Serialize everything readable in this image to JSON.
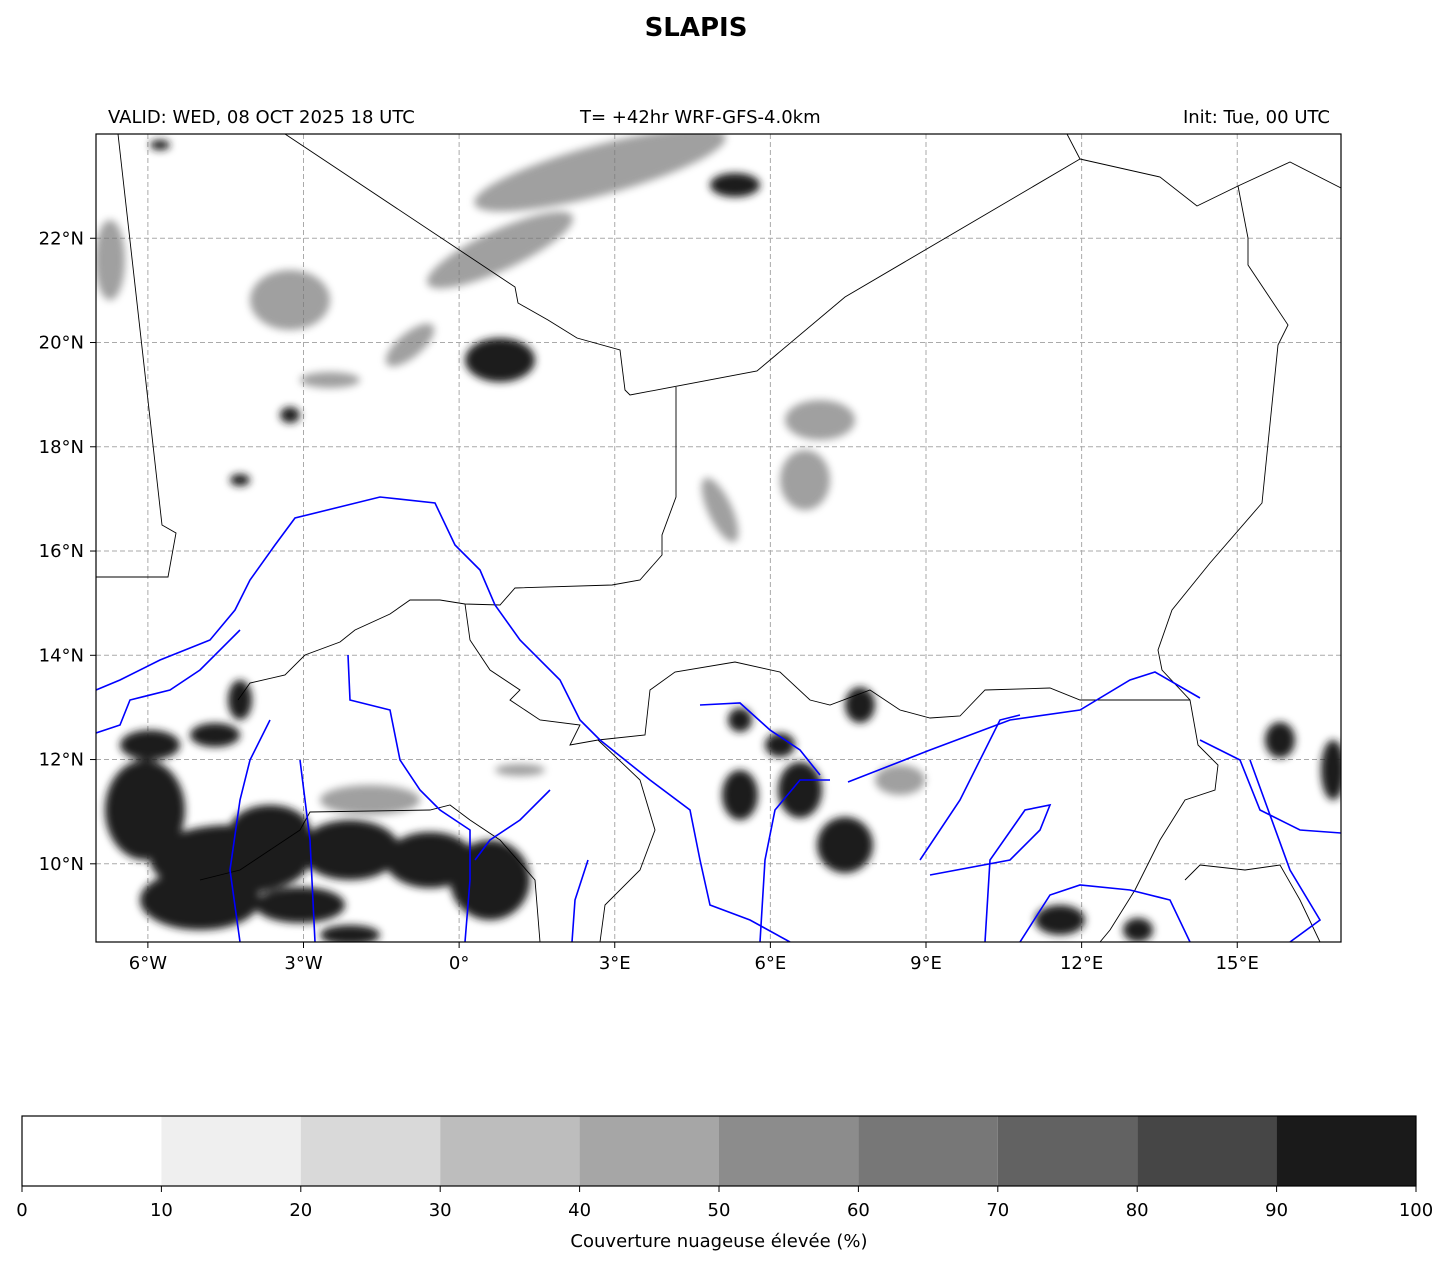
{
  "chart_data": {
    "type": "map",
    "title": "SLAPIS",
    "subtitle_left": "VALID: WED, 08 OCT 2025 18 UTC",
    "subtitle_center": "T= +42hr WRF-GFS-4.0km",
    "subtitle_right": "Init: Tue, 00 UTC",
    "xlim": [
      -7,
      17
    ],
    "ylim": [
      8.5,
      24
    ],
    "grid": true,
    "xticks": [
      {
        "value": -6,
        "label": "6°W"
      },
      {
        "value": -3,
        "label": "3°W"
      },
      {
        "value": 0,
        "label": "0°"
      },
      {
        "value": 3,
        "label": "3°E"
      },
      {
        "value": 6,
        "label": "6°E"
      },
      {
        "value": 9,
        "label": "9°E"
      },
      {
        "value": 12,
        "label": "12°E"
      },
      {
        "value": 15,
        "label": "15°E"
      }
    ],
    "yticks": [
      {
        "value": 10,
        "label": "10°N"
      },
      {
        "value": 12,
        "label": "12°N"
      },
      {
        "value": 14,
        "label": "14°N"
      },
      {
        "value": 16,
        "label": "16°N"
      },
      {
        "value": 18,
        "label": "18°N"
      },
      {
        "value": 20,
        "label": "20°N"
      },
      {
        "value": 22,
        "label": "22°N"
      }
    ],
    "colorbar": {
      "label": "Couverture nuageuse élevée (%)",
      "levels": [
        0,
        10,
        20,
        30,
        40,
        50,
        60,
        70,
        80,
        90,
        100
      ],
      "colors": [
        "#ffffff",
        "#efefef",
        "#d9d9d9",
        "#bdbdbd",
        "#a6a6a6",
        "#8c8c8c",
        "#777777",
        "#626262",
        "#464646",
        "#1a1a1a"
      ]
    }
  }
}
